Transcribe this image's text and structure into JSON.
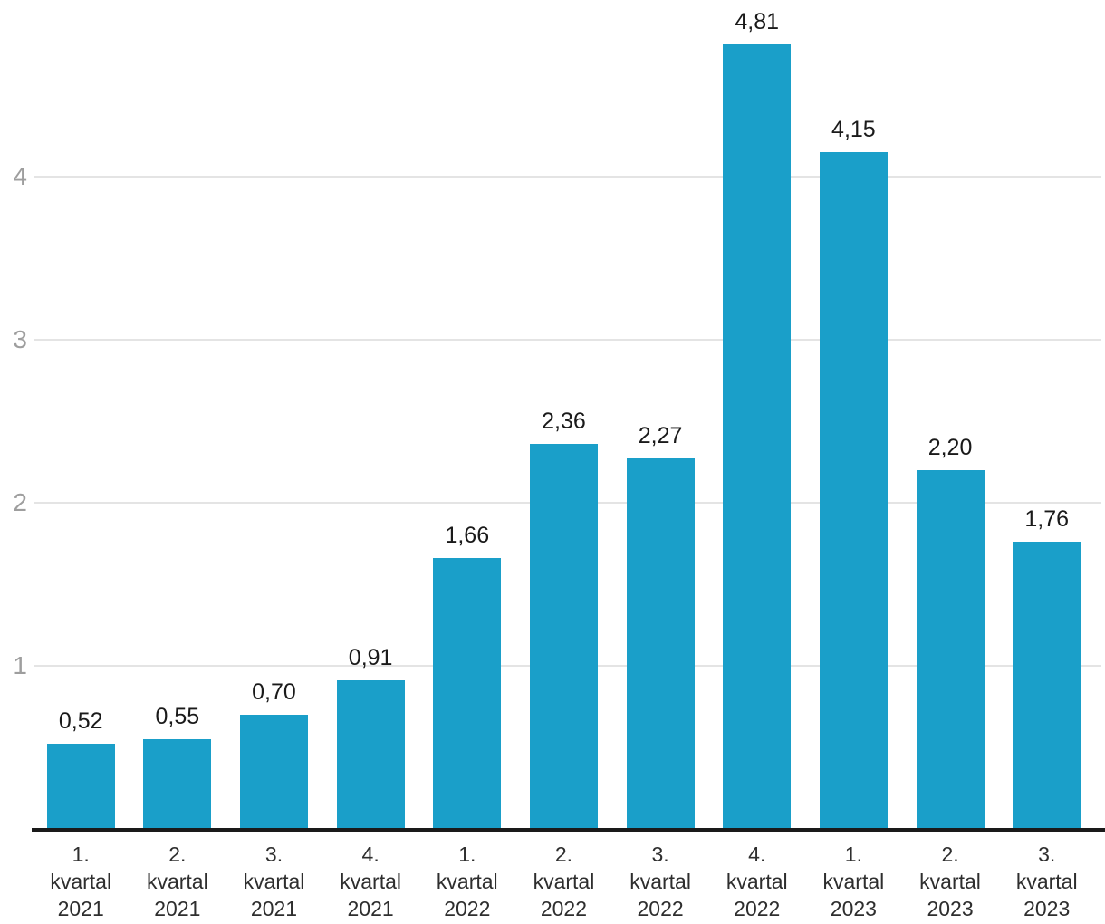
{
  "chart_data": {
    "type": "bar",
    "title": "",
    "xlabel": "",
    "ylabel": "",
    "categories": [
      "1. kvartal 2021",
      "2. kvartal 2021",
      "3. kvartal 2021",
      "4. kvartal 2021",
      "1. kvartal 2022",
      "2. kvartal 2022",
      "3. kvartal 2022",
      "4. kvartal 2022",
      "1. kvartal 2023",
      "2. kvartal 2023",
      "3. kvartal 2023"
    ],
    "values": [
      0.52,
      0.55,
      0.7,
      0.91,
      1.66,
      2.36,
      2.27,
      4.81,
      4.15,
      2.2,
      1.76
    ],
    "value_labels": [
      "0,52",
      "0,55",
      "0,70",
      "0,91",
      "1,66",
      "2,36",
      "2,27",
      "4,81",
      "4,15",
      "2,20",
      "1,76"
    ],
    "yticks": [
      1,
      2,
      3,
      4
    ],
    "ytick_labels": [
      "1",
      "2",
      "3",
      "4"
    ],
    "ylim": [
      0,
      5.05
    ],
    "grid": true,
    "legend": false,
    "decimal_separator": ","
  },
  "colors": {
    "bar": "#1a9fc9",
    "gridline": "#e4e4e4",
    "y_tick_text": "#9e9e9e",
    "x_tick_text": "#2e2e2e",
    "value_text": "#1a1a1a",
    "axis_line": "#1a1a1a",
    "background": "#ffffff"
  }
}
